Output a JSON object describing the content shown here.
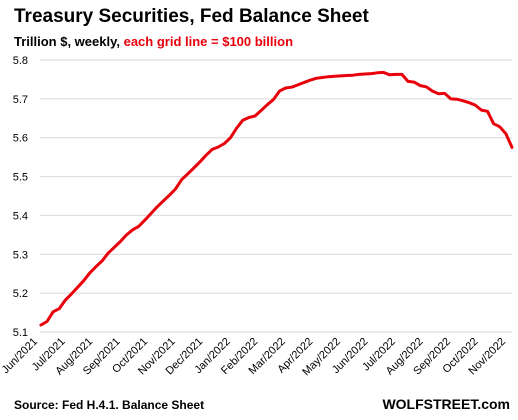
{
  "header": {
    "title": "Treasury Securities, Fed Balance Sheet",
    "subtitle_prefix": "Trillion $, weekly, ",
    "subtitle_highlight": "each grid line = $100 billion"
  },
  "footer": {
    "source": "Source: Fed H.4.1. Balance Sheet",
    "brand": "WOLFSTREET.com"
  },
  "colors": {
    "line": "#e8000b",
    "grid": "#d9d9d9",
    "highlight_text": "#e8000b"
  },
  "chart_data": {
    "type": "line",
    "title": "Treasury Securities, Fed Balance Sheet",
    "ylabel": "Trillion $",
    "ylim": [
      5.1,
      5.8
    ],
    "yticks": [
      5.1,
      5.2,
      5.3,
      5.4,
      5.5,
      5.6,
      5.7,
      5.8
    ],
    "ytick_labels": [
      "5.1",
      "5.2",
      "5.3",
      "5.4",
      "5.5",
      "5.6",
      "5.7",
      "5.8"
    ],
    "xtick_labels": [
      "Jun/2021",
      "Jul/2021",
      "Aug/2021",
      "Sep/2021",
      "Oct/2021",
      "Nov/2021",
      "Dec/2021",
      "Jan/2022",
      "Feb/2022",
      "Mar/2022",
      "Apr/2022",
      "May/2022",
      "Jun/2022",
      "Jul/2022",
      "Aug/2022",
      "Sep/2022",
      "Oct/2022",
      "Nov/2022"
    ],
    "xlim": [
      "2021-06-01",
      "2022-11-23"
    ],
    "grid": true,
    "series": [
      {
        "values": [
          {
            "x": "2021-06-02",
            "y": 5.118
          },
          {
            "x": "2021-06-09",
            "y": 5.127
          },
          {
            "x": "2021-06-16",
            "y": 5.152
          },
          {
            "x": "2021-06-23",
            "y": 5.16
          },
          {
            "x": "2021-06-30",
            "y": 5.182
          },
          {
            "x": "2021-07-07",
            "y": 5.198
          },
          {
            "x": "2021-07-14",
            "y": 5.215
          },
          {
            "x": "2021-07-21",
            "y": 5.232
          },
          {
            "x": "2021-07-28",
            "y": 5.252
          },
          {
            "x": "2021-08-04",
            "y": 5.268
          },
          {
            "x": "2021-08-11",
            "y": 5.283
          },
          {
            "x": "2021-08-18",
            "y": 5.303
          },
          {
            "x": "2021-08-25",
            "y": 5.318
          },
          {
            "x": "2021-09-01",
            "y": 5.333
          },
          {
            "x": "2021-09-08",
            "y": 5.35
          },
          {
            "x": "2021-09-15",
            "y": 5.363
          },
          {
            "x": "2021-09-22",
            "y": 5.372
          },
          {
            "x": "2021-09-29",
            "y": 5.388
          },
          {
            "x": "2021-10-06",
            "y": 5.405
          },
          {
            "x": "2021-10-13",
            "y": 5.422
          },
          {
            "x": "2021-10-20",
            "y": 5.437
          },
          {
            "x": "2021-10-27",
            "y": 5.452
          },
          {
            "x": "2021-11-03",
            "y": 5.468
          },
          {
            "x": "2021-11-10",
            "y": 5.492
          },
          {
            "x": "2021-11-17",
            "y": 5.507
          },
          {
            "x": "2021-11-24",
            "y": 5.522
          },
          {
            "x": "2021-12-01",
            "y": 5.538
          },
          {
            "x": "2021-12-08",
            "y": 5.555
          },
          {
            "x": "2021-12-15",
            "y": 5.57
          },
          {
            "x": "2021-12-22",
            "y": 5.576
          },
          {
            "x": "2021-12-29",
            "y": 5.585
          },
          {
            "x": "2022-01-05",
            "y": 5.6
          },
          {
            "x": "2022-01-12",
            "y": 5.625
          },
          {
            "x": "2022-01-19",
            "y": 5.645
          },
          {
            "x": "2022-01-26",
            "y": 5.652
          },
          {
            "x": "2022-02-02",
            "y": 5.656
          },
          {
            "x": "2022-02-09",
            "y": 5.67
          },
          {
            "x": "2022-02-16",
            "y": 5.685
          },
          {
            "x": "2022-02-23",
            "y": 5.698
          },
          {
            "x": "2022-03-02",
            "y": 5.72
          },
          {
            "x": "2022-03-09",
            "y": 5.728
          },
          {
            "x": "2022-03-16",
            "y": 5.73
          },
          {
            "x": "2022-03-23",
            "y": 5.736
          },
          {
            "x": "2022-03-30",
            "y": 5.742
          },
          {
            "x": "2022-04-06",
            "y": 5.748
          },
          {
            "x": "2022-04-13",
            "y": 5.753
          },
          {
            "x": "2022-04-20",
            "y": 5.755
          },
          {
            "x": "2022-04-27",
            "y": 5.757
          },
          {
            "x": "2022-05-04",
            "y": 5.758
          },
          {
            "x": "2022-05-11",
            "y": 5.759
          },
          {
            "x": "2022-05-18",
            "y": 5.76
          },
          {
            "x": "2022-05-25",
            "y": 5.761
          },
          {
            "x": "2022-06-01",
            "y": 5.763
          },
          {
            "x": "2022-06-08",
            "y": 5.764
          },
          {
            "x": "2022-06-15",
            "y": 5.765
          },
          {
            "x": "2022-06-22",
            "y": 5.767
          },
          {
            "x": "2022-06-29",
            "y": 5.768
          },
          {
            "x": "2022-07-06",
            "y": 5.762
          },
          {
            "x": "2022-07-13",
            "y": 5.763
          },
          {
            "x": "2022-07-20",
            "y": 5.763
          },
          {
            "x": "2022-07-27",
            "y": 5.745
          },
          {
            "x": "2022-08-03",
            "y": 5.743
          },
          {
            "x": "2022-08-10",
            "y": 5.734
          },
          {
            "x": "2022-08-17",
            "y": 5.731
          },
          {
            "x": "2022-08-24",
            "y": 5.72
          },
          {
            "x": "2022-08-31",
            "y": 5.713
          },
          {
            "x": "2022-09-07",
            "y": 5.714
          },
          {
            "x": "2022-09-14",
            "y": 5.7
          },
          {
            "x": "2022-09-21",
            "y": 5.699
          },
          {
            "x": "2022-09-28",
            "y": 5.695
          },
          {
            "x": "2022-10-05",
            "y": 5.69
          },
          {
            "x": "2022-10-12",
            "y": 5.684
          },
          {
            "x": "2022-10-19",
            "y": 5.671
          },
          {
            "x": "2022-10-26",
            "y": 5.668
          },
          {
            "x": "2022-11-02",
            "y": 5.636
          },
          {
            "x": "2022-11-09",
            "y": 5.628
          },
          {
            "x": "2022-11-16",
            "y": 5.61
          },
          {
            "x": "2022-11-23",
            "y": 5.575
          }
        ]
      }
    ]
  }
}
